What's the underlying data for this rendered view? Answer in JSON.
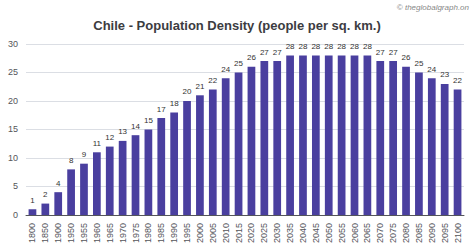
{
  "chart_data": {
    "type": "bar",
    "title": "Chile - Population Density (people per sq. km.)",
    "annotations": [
      "© theglobalgraph.on"
    ],
    "categories": [
      "1800",
      "1850",
      "1900",
      "1950",
      "1955",
      "1960",
      "1965",
      "1970",
      "1975",
      "1980",
      "1985",
      "1990",
      "1995",
      "2000",
      "2005",
      "2010",
      "2015",
      "2020",
      "2025",
      "2030",
      "2035",
      "2040",
      "2045",
      "2050",
      "2055",
      "2060",
      "2065",
      "2070",
      "2075",
      "2080",
      "2085",
      "2090",
      "2095",
      "2100"
    ],
    "values": [
      1,
      2,
      4,
      8,
      9,
      11,
      12,
      13,
      14,
      15,
      17,
      18,
      20,
      21,
      22,
      24,
      25,
      26,
      27,
      27,
      28,
      28,
      28,
      28,
      28,
      28,
      28,
      27,
      27,
      26,
      25,
      24,
      23,
      22
    ],
    "color": "#4a3f9f",
    "ylim": [
      0,
      30
    ],
    "yticks": [
      0,
      5,
      10,
      15,
      20,
      25,
      30
    ],
    "grid": true,
    "data_labels": true
  }
}
